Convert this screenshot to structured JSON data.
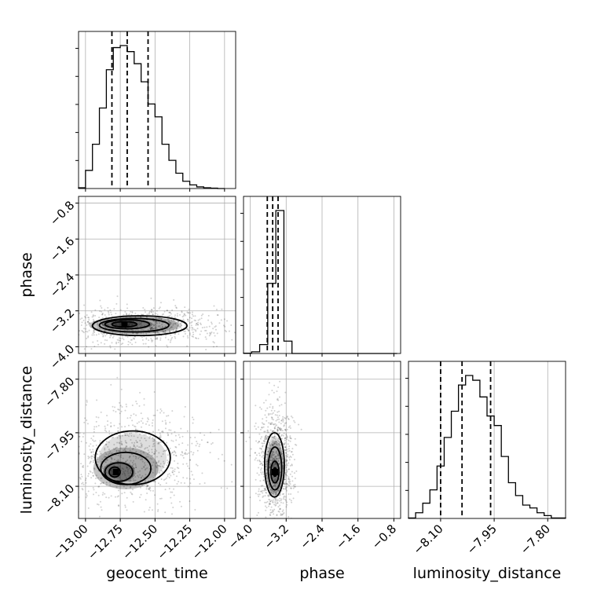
{
  "chart_data": {
    "type": "corner",
    "parameters": [
      "geocent_time",
      "phase",
      "luminosity_distance"
    ],
    "axis_labels": {
      "geocent_time": "geocent_time",
      "phase": "phase",
      "luminosity_distance": "luminosity_distance"
    },
    "ranges": {
      "geocent_time": [
        -13.05,
        -11.92
      ],
      "phase": [
        -4.15,
        -0.65
      ],
      "luminosity_distance": [
        -8.19,
        -7.75
      ]
    },
    "ticks": {
      "geocent_time": [
        -13.0,
        -12.75,
        -12.5,
        -12.25,
        -12.0
      ],
      "phase": [
        -4.0,
        -3.2,
        -2.4,
        -1.6,
        -0.8
      ],
      "luminosity_distance": [
        -8.1,
        -7.95,
        -7.8
      ]
    },
    "tick_labels": {
      "geocent_time": [
        "−13.00",
        "−12.75",
        "−12.50",
        "−12.25",
        "−12.00"
      ],
      "phase": [
        "−4.0",
        "−3.2",
        "−2.4",
        "−1.6",
        "−0.8"
      ],
      "luminosity_distance": [
        "−8.10",
        "−7.95",
        "−7.80"
      ]
    },
    "histograms": {
      "geocent_time": {
        "edges": [
          -13.05,
          -13.0,
          -12.95,
          -12.9,
          -12.85,
          -12.8,
          -12.75,
          -12.7,
          -12.65,
          -12.6,
          -12.55,
          -12.5,
          -12.45,
          -12.4,
          -12.35,
          -12.3,
          -12.25,
          -12.2,
          -12.15,
          -12.1,
          -12.05,
          -12.0
        ],
        "counts": [
          2,
          45,
          110,
          200,
          295,
          350,
          355,
          340,
          310,
          265,
          210,
          178,
          110,
          70,
          38,
          18,
          9,
          4,
          2,
          1,
          0
        ]
      },
      "phase": {
        "edges": [
          -4.15,
          -3.97,
          -3.79,
          -3.61,
          -3.43,
          -3.25,
          -3.07,
          -2.89,
          -2.71,
          -2.53,
          -2.35,
          -2.17,
          -1.99,
          -1.81,
          -1.63,
          -1.45,
          -1.27,
          -1.09,
          -0.91,
          -0.73
        ],
        "counts": [
          2,
          12,
          65,
          510,
          1040,
          90,
          0,
          0,
          0,
          0,
          0,
          0,
          0,
          0,
          0,
          0,
          0,
          0,
          0
        ]
      },
      "luminosity_distance": {
        "edges": [
          -8.19,
          -8.17,
          -8.15,
          -8.13,
          -8.11,
          -8.09,
          -8.07,
          -8.05,
          -8.03,
          -8.01,
          -7.99,
          -7.97,
          -7.95,
          -7.93,
          -7.91,
          -7.89,
          -7.87,
          -7.85,
          -7.83,
          -7.81,
          -7.79,
          -7.77,
          -7.75
        ],
        "counts": [
          1,
          12,
          32,
          60,
          110,
          170,
          225,
          280,
          300,
          290,
          255,
          215,
          195,
          130,
          75,
          48,
          28,
          22,
          12,
          6,
          1,
          1
        ]
      }
    },
    "quantiles": {
      "geocent_time": [
        -12.81,
        -12.7,
        -12.55
      ],
      "phase": [
        -3.62,
        -3.5,
        -3.38
      ],
      "luminosity_distance": [
        -8.1,
        -8.04,
        -7.96
      ]
    },
    "contours": [
      {
        "x": "geocent_time",
        "y": "phase",
        "peak": [
          -12.72,
          -3.5
        ],
        "levels": [
          {
            "cx": -12.72,
            "cy": -3.5,
            "rx": 0.09,
            "ry": 0.06
          },
          {
            "cx": -12.7,
            "cy": -3.5,
            "rx": 0.16,
            "ry": 0.1
          },
          {
            "cx": -12.65,
            "cy": -3.52,
            "rx": 0.25,
            "ry": 0.15
          },
          {
            "cx": -12.61,
            "cy": -3.53,
            "rx": 0.34,
            "ry": 0.22
          }
        ]
      },
      {
        "x": "geocent_time",
        "y": "luminosity_distance",
        "peak": [
          -12.78,
          -8.06
        ],
        "levels": [
          {
            "cx": -12.79,
            "cy": -8.06,
            "rx": 0.04,
            "ry": 0.014
          },
          {
            "cx": -12.76,
            "cy": -8.06,
            "rx": 0.1,
            "ry": 0.026
          },
          {
            "cx": -12.71,
            "cy": -8.05,
            "rx": 0.18,
            "ry": 0.045
          },
          {
            "cx": -12.66,
            "cy": -8.02,
            "rx": 0.27,
            "ry": 0.075
          }
        ]
      },
      {
        "x": "phase",
        "y": "luminosity_distance",
        "peak": [
          -3.45,
          -8.06
        ],
        "levels": [
          {
            "cx": -3.45,
            "cy": -8.06,
            "rx": 0.04,
            "ry": 0.012
          },
          {
            "cx": -3.45,
            "cy": -8.06,
            "rx": 0.09,
            "ry": 0.03
          },
          {
            "cx": -3.45,
            "cy": -8.05,
            "rx": 0.15,
            "ry": 0.06
          },
          {
            "cx": -3.46,
            "cy": -8.04,
            "rx": 0.22,
            "ry": 0.09
          }
        ]
      }
    ],
    "grid": true
  }
}
